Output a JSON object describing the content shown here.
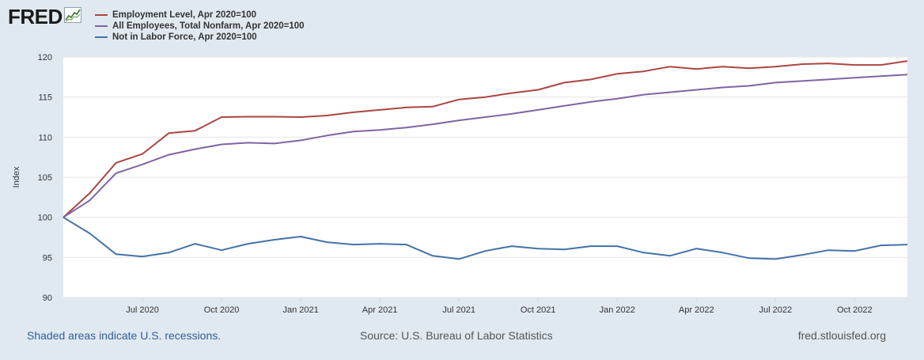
{
  "header": {
    "logo": "FRED"
  },
  "colors": {
    "employment": "#aa4643",
    "nonfarm": "#8064a2",
    "nilf": "#4572a7"
  },
  "chart_data": {
    "type": "line",
    "title": "",
    "xlabel": "",
    "ylabel": "Index",
    "ylim": [
      90,
      120
    ],
    "yticks": [
      90,
      95,
      100,
      105,
      110,
      115,
      120
    ],
    "x": [
      "2020-04",
      "2020-05",
      "2020-06",
      "2020-07",
      "2020-08",
      "2020-09",
      "2020-10",
      "2020-11",
      "2020-12",
      "2021-01",
      "2021-02",
      "2021-03",
      "2021-04",
      "2021-05",
      "2021-06",
      "2021-07",
      "2021-08",
      "2021-09",
      "2021-10",
      "2021-11",
      "2021-12",
      "2022-01",
      "2022-02",
      "2022-03",
      "2022-04",
      "2022-05",
      "2022-06",
      "2022-07",
      "2022-08",
      "2022-09",
      "2022-10",
      "2022-11",
      "2022-12"
    ],
    "xtick_labels": [
      {
        "x": "2020-07",
        "label": "Jul 2020"
      },
      {
        "x": "2020-10",
        "label": "Oct 2020"
      },
      {
        "x": "2021-01",
        "label": "Jan 2021"
      },
      {
        "x": "2021-04",
        "label": "Apr 2021"
      },
      {
        "x": "2021-07",
        "label": "Jul 2021"
      },
      {
        "x": "2021-10",
        "label": "Oct 2021"
      },
      {
        "x": "2022-01",
        "label": "Jan 2022"
      },
      {
        "x": "2022-04",
        "label": "Apr 2022"
      },
      {
        "x": "2022-07",
        "label": "Jul 2022"
      },
      {
        "x": "2022-10",
        "label": "Oct 2022"
      }
    ],
    "series": [
      {
        "name": "Employment Level, Apr 2020=100",
        "color": "#aa4643",
        "values": [
          100,
          103.0,
          106.8,
          107.9,
          110.5,
          110.8,
          112.5,
          112.55,
          112.55,
          112.5,
          112.7,
          113.1,
          113.4,
          113.7,
          113.8,
          114.7,
          115.0,
          115.5,
          115.9,
          116.8,
          117.2,
          117.9,
          118.2,
          118.8,
          118.5,
          118.8,
          118.6,
          118.8,
          119.1,
          119.2,
          119.0,
          119.0,
          119.5
        ]
      },
      {
        "name": "All Employees, Total Nonfarm, Apr 2020=100",
        "color": "#8064a2",
        "values": [
          100,
          102.1,
          105.5,
          106.6,
          107.8,
          108.5,
          109.1,
          109.3,
          109.2,
          109.6,
          110.2,
          110.7,
          110.9,
          111.2,
          111.6,
          112.1,
          112.5,
          112.9,
          113.4,
          113.9,
          114.4,
          114.8,
          115.3,
          115.6,
          115.9,
          116.2,
          116.4,
          116.8,
          117.0,
          117.2,
          117.4,
          117.6,
          117.8
        ]
      },
      {
        "name": "Not in Labor Force, Apr 2020=100",
        "color": "#4572a7",
        "values": [
          100,
          98.0,
          95.4,
          95.1,
          95.6,
          96.7,
          95.9,
          96.7,
          97.2,
          97.6,
          96.9,
          96.6,
          96.7,
          96.6,
          95.2,
          94.8,
          95.8,
          96.4,
          96.1,
          96.0,
          96.4,
          96.4,
          95.6,
          95.2,
          96.1,
          95.6,
          94.9,
          94.8,
          95.3,
          95.9,
          95.8,
          96.5,
          96.6
        ]
      }
    ]
  },
  "footer": {
    "recessions": "Shaded areas indicate U.S. recessions.",
    "source": "Source: U.S. Bureau of Labor Statistics",
    "url": "fred.stlouisfed.org"
  }
}
